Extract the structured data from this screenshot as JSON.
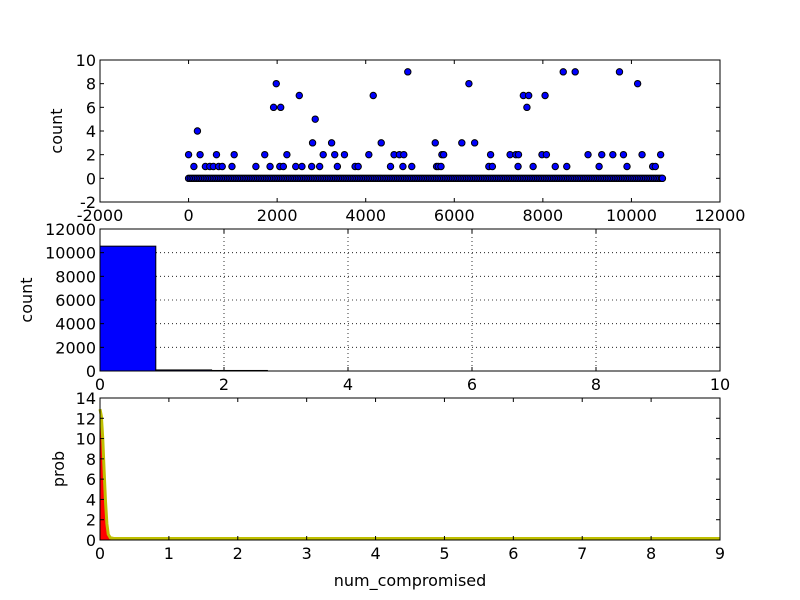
{
  "chart_data": [
    {
      "type": "scatter",
      "xlabel": "",
      "ylabel": "count",
      "xlim": [
        -2000,
        12000
      ],
      "ylim": [
        -2,
        10
      ],
      "xticks": [
        -2000,
        0,
        2000,
        4000,
        6000,
        8000,
        10000,
        12000
      ],
      "yticks": [
        -2,
        0,
        2,
        4,
        6,
        8,
        10
      ],
      "grid": false,
      "marker_color": "#0000ff",
      "points": [
        [
          0,
          2
        ],
        [
          120,
          1
        ],
        [
          200,
          4
        ],
        [
          260,
          2
        ],
        [
          380,
          1
        ],
        [
          480,
          1
        ],
        [
          560,
          1
        ],
        [
          630,
          2
        ],
        [
          680,
          1
        ],
        [
          760,
          1
        ],
        [
          980,
          1
        ],
        [
          1030,
          2
        ],
        [
          1520,
          1
        ],
        [
          1720,
          2
        ],
        [
          1840,
          1
        ],
        [
          1920,
          6
        ],
        [
          1980,
          8
        ],
        [
          2060,
          1
        ],
        [
          2080,
          6
        ],
        [
          2140,
          1
        ],
        [
          2220,
          2
        ],
        [
          2420,
          1
        ],
        [
          2500,
          7
        ],
        [
          2560,
          1
        ],
        [
          2780,
          1
        ],
        [
          2800,
          3
        ],
        [
          2860,
          5
        ],
        [
          2960,
          1
        ],
        [
          3040,
          2
        ],
        [
          3230,
          3
        ],
        [
          3300,
          2
        ],
        [
          3360,
          1
        ],
        [
          3520,
          2
        ],
        [
          3760,
          1
        ],
        [
          3830,
          1
        ],
        [
          4070,
          2
        ],
        [
          4170,
          7
        ],
        [
          4350,
          3
        ],
        [
          4560,
          1
        ],
        [
          4640,
          2
        ],
        [
          4760,
          2
        ],
        [
          4840,
          1
        ],
        [
          4860,
          2
        ],
        [
          4950,
          9
        ],
        [
          5040,
          1
        ],
        [
          5570,
          3
        ],
        [
          5600,
          1
        ],
        [
          5640,
          1
        ],
        [
          5700,
          1
        ],
        [
          5720,
          2
        ],
        [
          5760,
          2
        ],
        [
          6170,
          3
        ],
        [
          6330,
          8
        ],
        [
          6460,
          3
        ],
        [
          6780,
          1
        ],
        [
          6820,
          2
        ],
        [
          6860,
          1
        ],
        [
          7260,
          2
        ],
        [
          7390,
          2
        ],
        [
          7440,
          1
        ],
        [
          7450,
          2
        ],
        [
          7560,
          7
        ],
        [
          7640,
          6
        ],
        [
          7680,
          7
        ],
        [
          7780,
          1
        ],
        [
          7980,
          2
        ],
        [
          8050,
          7
        ],
        [
          8080,
          2
        ],
        [
          8280,
          1
        ],
        [
          8460,
          9
        ],
        [
          8540,
          1
        ],
        [
          8730,
          9
        ],
        [
          9020,
          2
        ],
        [
          9270,
          1
        ],
        [
          9330,
          2
        ],
        [
          9580,
          2
        ],
        [
          9730,
          9
        ],
        [
          9820,
          2
        ],
        [
          9900,
          1
        ],
        [
          10140,
          8
        ],
        [
          10240,
          2
        ],
        [
          10480,
          1
        ],
        [
          10540,
          1
        ],
        [
          10660,
          2
        ],
        [
          10700,
          0
        ]
      ],
      "zero_row": {
        "x_from": 0,
        "x_to": 10700,
        "y": 0
      }
    },
    {
      "type": "bar",
      "xlabel": "",
      "ylabel": "count",
      "xlim": [
        0,
        10
      ],
      "ylim": [
        0,
        12000
      ],
      "xticks": [
        0,
        2,
        4,
        6,
        8,
        10
      ],
      "yticks": [
        0,
        2000,
        4000,
        6000,
        8000,
        10000,
        12000
      ],
      "grid": true,
      "bar_color": "#0000ff",
      "bin_width": 0.9,
      "bins": [
        {
          "x": 0.0,
          "value": 10550
        },
        {
          "x": 0.9,
          "value": 90
        },
        {
          "x": 1.8,
          "value": 45
        }
      ]
    },
    {
      "type": "area",
      "xlabel": "num_compromised",
      "ylabel": "prob",
      "xlim": [
        0,
        9
      ],
      "ylim": [
        0,
        14
      ],
      "xticks": [
        0,
        1,
        2,
        3,
        4,
        5,
        6,
        7,
        8,
        9
      ],
      "yticks": [
        0,
        2,
        4,
        6,
        8,
        10,
        12,
        14
      ],
      "grid": false,
      "fill_color": "#ff0000",
      "line_color": "#bfbf00",
      "x": [
        0,
        0.02,
        0.04,
        0.06,
        0.08,
        0.1,
        0.12,
        0.15,
        0.2,
        0.5,
        1,
        2,
        3,
        4,
        5,
        6,
        7,
        8,
        9
      ],
      "y": [
        12.9,
        12.2,
        10.0,
        6.8,
        3.8,
        1.6,
        0.55,
        0.22,
        0.15,
        0.15,
        0.15,
        0.15,
        0.15,
        0.15,
        0.15,
        0.15,
        0.15,
        0.15,
        0.15
      ]
    }
  ]
}
